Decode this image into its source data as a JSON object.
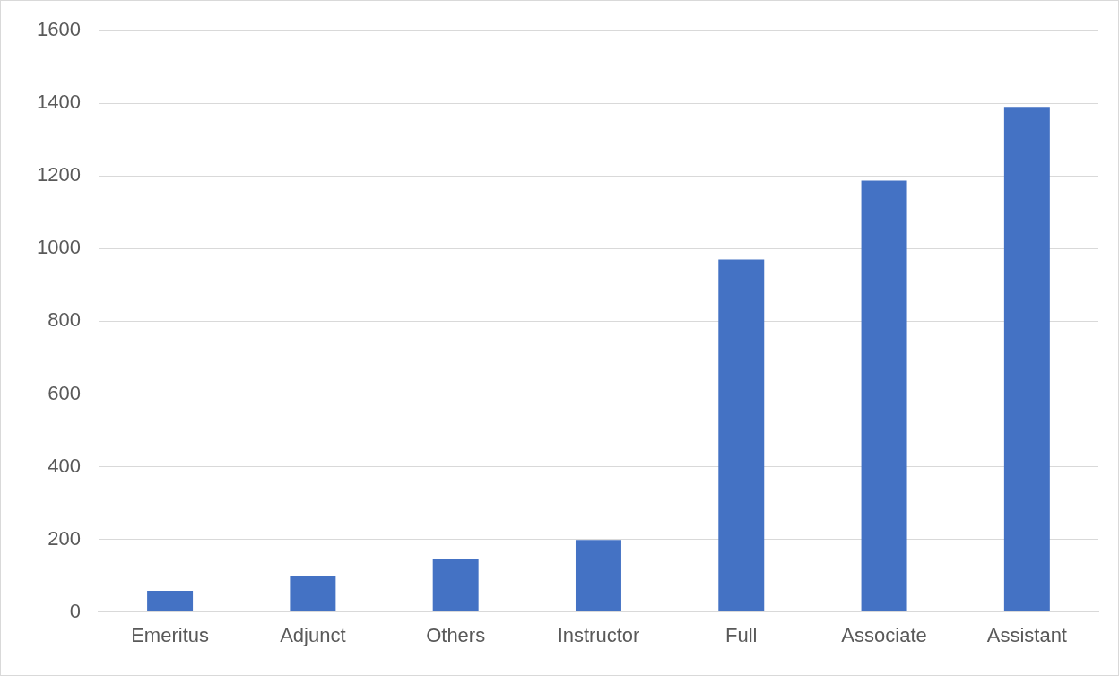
{
  "chart_data": {
    "type": "bar",
    "categories": [
      "Emeritus",
      "Adjunct",
      "Others",
      "Instructor",
      "Full",
      "Associate",
      "Assistant"
    ],
    "values": [
      58,
      100,
      145,
      198,
      970,
      1187,
      1390
    ],
    "color": "#4472c4",
    "ylim": [
      0,
      1600
    ],
    "yticks": [
      0,
      200,
      400,
      600,
      800,
      1000,
      1200,
      1400,
      1600
    ],
    "grid": "y"
  }
}
